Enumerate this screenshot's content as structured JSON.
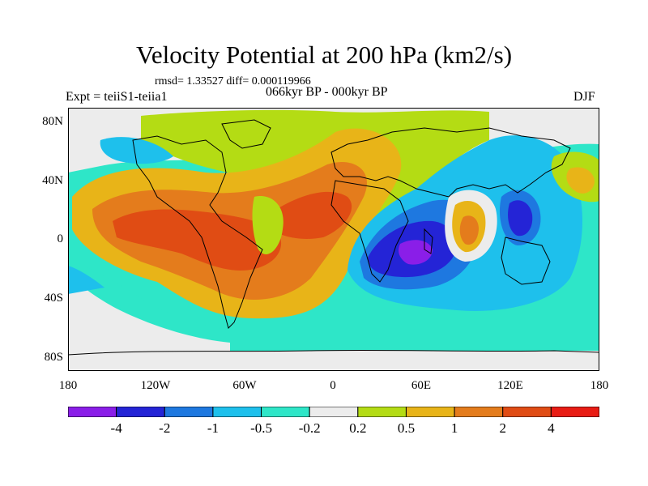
{
  "title": "Velocity Potential at 200 hPa (km2/s)",
  "stats": "rmsd= 1.33527 diff= 0.000119966",
  "left_label": "Expt = teiiS1-teiia1",
  "center_label": "066kyr BP - 000kyr BP",
  "right_label": "DJF",
  "lat_labels": [
    "80N",
    "40N",
    "0",
    "40S",
    "80S"
  ],
  "lon_labels": [
    "180",
    "120W",
    "60W",
    "0",
    "60E",
    "120E",
    "180"
  ],
  "colorbar": {
    "colors": [
      "#8a1ee8",
      "#2424d6",
      "#1e78e0",
      "#1ec0ec",
      "#2ee6c8",
      "#ececec",
      "#b4dc14",
      "#e8b418",
      "#e47c1c",
      "#e04c14",
      "#e81c14"
    ],
    "labels": [
      "-4",
      "-2",
      "-1",
      "-0.5",
      "-0.2",
      "0.2",
      "0.5",
      "1",
      "2",
      "4"
    ]
  }
}
